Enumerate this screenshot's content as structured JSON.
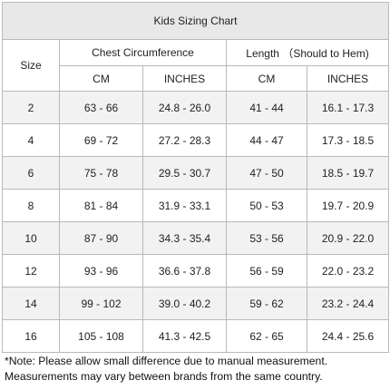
{
  "title": "Kids Sizing Chart",
  "headers": {
    "size": "Size",
    "chest": "Chest Circumference",
    "length": "Length （Should to Hem)",
    "cm": "CM",
    "inches": "INCHES"
  },
  "rows": [
    {
      "size": "2",
      "chest_cm": "63 - 66",
      "chest_in": "24.8 - 26.0",
      "len_cm": "41 - 44",
      "len_in": "16.1 - 17.3"
    },
    {
      "size": "4",
      "chest_cm": "69 - 72",
      "chest_in": "27.2 - 28.3",
      "len_cm": "44 - 47",
      "len_in": "17.3 - 18.5"
    },
    {
      "size": "6",
      "chest_cm": "75 - 78",
      "chest_in": "29.5 - 30.7",
      "len_cm": "47 - 50",
      "len_in": "18.5 - 19.7"
    },
    {
      "size": "8",
      "chest_cm": "81 - 84",
      "chest_in": "31.9 - 33.1",
      "len_cm": "50 - 53",
      "len_in": "19.7 - 20.9"
    },
    {
      "size": "10",
      "chest_cm": "87 - 90",
      "chest_in": "34.3 - 35.4",
      "len_cm": "53 - 56",
      "len_in": "20.9 - 22.0"
    },
    {
      "size": "12",
      "chest_cm": "93 - 96",
      "chest_in": "36.6 - 37.8",
      "len_cm": "56 - 59",
      "len_in": "22.0 - 23.2"
    },
    {
      "size": "14",
      "chest_cm": "99 - 102",
      "chest_in": "39.0 - 40.2",
      "len_cm": "59 - 62",
      "len_in": "23.2 - 24.4"
    },
    {
      "size": "16",
      "chest_cm": "105 - 108",
      "chest_in": "41.3 - 42.5",
      "len_cm": "62 - 65",
      "len_in": "24.4 - 25.6"
    }
  ],
  "note": {
    "line1": "*Note: Please allow small difference due to manual measurement.",
    "line2": "Measurements may vary between brands from the same country."
  }
}
